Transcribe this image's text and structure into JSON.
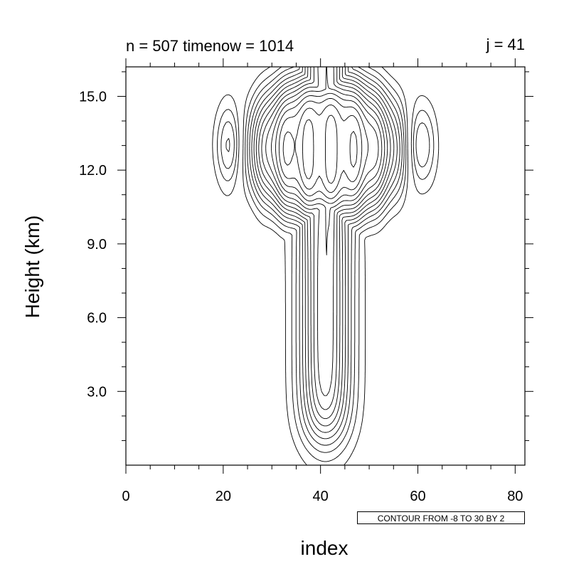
{
  "header": {
    "title_left": "n = 507 timenow = 1014",
    "title_right": "j = 41"
  },
  "info_label": "CONTOUR FROM -8 TO 30 BY 2",
  "chart_data": {
    "type": "contour",
    "xlabel": "index",
    "ylabel": "Height (km)",
    "xlim": [
      0,
      82
    ],
    "ylim": [
      0,
      16.2
    ],
    "x_ticks": [
      0,
      20,
      40,
      60,
      80
    ],
    "x_tick_labels": [
      "0",
      "20",
      "40",
      "60",
      "80"
    ],
    "y_ticks": [
      3.0,
      6.0,
      9.0,
      12.0,
      15.0
    ],
    "y_tick_labels": [
      "3.0",
      "6.0",
      "9.0",
      "12.0",
      "15.0"
    ],
    "contour_min": -8,
    "contour_max": 30,
    "contour_interval": 2,
    "negative_contours": "dashed",
    "positive_contours": "solid",
    "line_color": "#000000",
    "grid": false
  }
}
